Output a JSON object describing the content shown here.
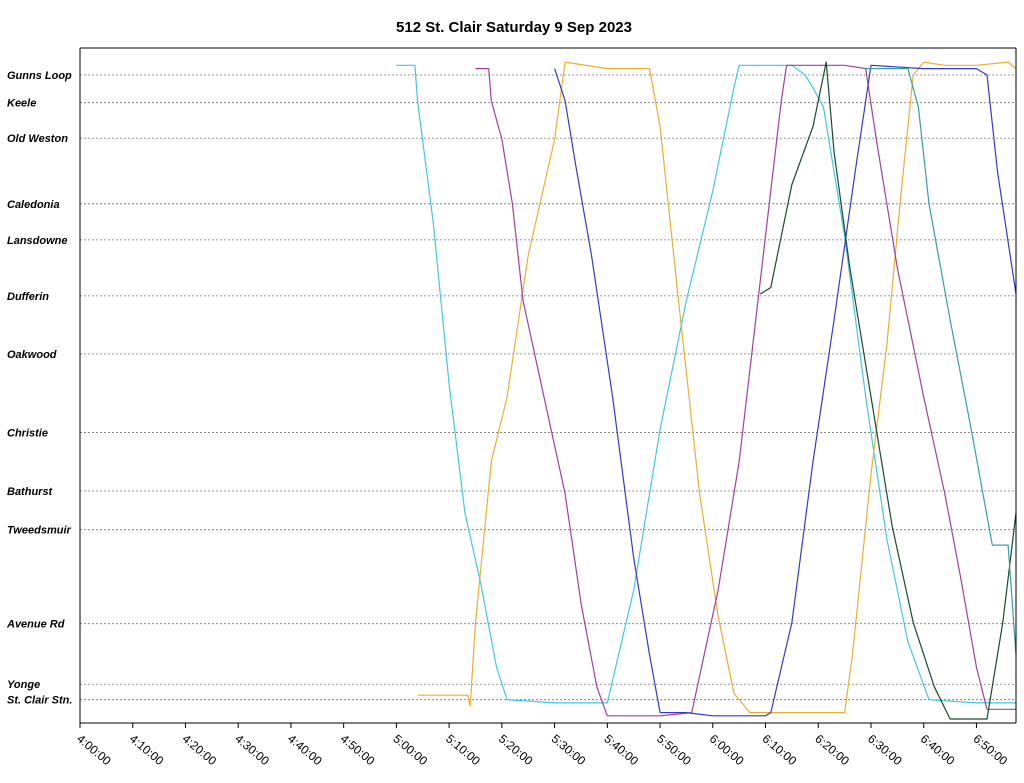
{
  "chart_data": {
    "type": "line",
    "title": "512 St. Clair Saturday 9 Sep 2023",
    "xlabel": "",
    "ylabel": "",
    "x_range": [
      "4:00:00",
      "6:57:30"
    ],
    "x_ticks": [
      "4:00:00",
      "4:10:00",
      "4:20:00",
      "4:30:00",
      "4:40:00",
      "4:50:00",
      "5:00:00",
      "5:10:00",
      "5:20:00",
      "5:30:00",
      "5:40:00",
      "5:50:00",
      "6:00:00",
      "6:10:00",
      "6:20:00",
      "6:30:00",
      "6:40:00",
      "6:50:00"
    ],
    "stops": [
      {
        "name": "Gunns Loop",
        "pos": 0.0
      },
      {
        "name": "Keele",
        "pos": 0.043
      },
      {
        "name": "Old Weston",
        "pos": 0.098
      },
      {
        "name": "Caledonia",
        "pos": 0.2
      },
      {
        "name": "Lansdowne",
        "pos": 0.256
      },
      {
        "name": "Dufferin",
        "pos": 0.343
      },
      {
        "name": "Oakwood",
        "pos": 0.433
      },
      {
        "name": "Christie",
        "pos": 0.555
      },
      {
        "name": "Bathurst",
        "pos": 0.646
      },
      {
        "name": "Tweedsmuir",
        "pos": 0.706
      },
      {
        "name": "Avenue Rd",
        "pos": 0.852
      },
      {
        "name": "Yonge",
        "pos": 0.946
      },
      {
        "name": "St. Clair Stn.",
        "pos": 0.97
      }
    ],
    "grid": "horizontal",
    "series": [
      {
        "color": "#40c8e0",
        "points": [
          [
            "5:00:00",
            -0.015
          ],
          [
            "5:03:30",
            -0.015
          ],
          [
            "5:04:00",
            0.04
          ],
          [
            "5:07:00",
            0.23
          ],
          [
            "5:10:00",
            0.48
          ],
          [
            "5:13:00",
            0.68
          ],
          [
            "5:16:00",
            0.79
          ],
          [
            "5:19:00",
            0.92
          ],
          [
            "5:21:00",
            0.97
          ],
          [
            "5:30:00",
            0.975
          ],
          [
            "5:40:00",
            0.975
          ],
          [
            "5:45:00",
            0.8
          ],
          [
            "5:50:00",
            0.55
          ],
          [
            "5:55:00",
            0.35
          ],
          [
            "6:00:00",
            0.18
          ],
          [
            "6:04:00",
            0.02
          ],
          [
            "6:05:00",
            -0.015
          ],
          [
            "6:15:00",
            -0.015
          ],
          [
            "6:17:30",
            0.0
          ],
          [
            "6:19:00",
            0.02
          ],
          [
            "6:21:00",
            0.05
          ],
          [
            "6:25:00",
            0.25
          ],
          [
            "6:29:00",
            0.5
          ],
          [
            "6:33:00",
            0.72
          ],
          [
            "6:37:00",
            0.88
          ],
          [
            "6:41:00",
            0.97
          ],
          [
            "6:50:00",
            0.975
          ],
          [
            "6:57:30",
            0.975
          ]
        ]
      },
      {
        "color": "#e8b030",
        "points": [
          [
            "5:04:00",
            0.963
          ],
          [
            "5:13:30",
            0.963
          ],
          [
            "5:14:00",
            0.98
          ],
          [
            "5:15:00",
            0.85
          ],
          [
            "5:18:00",
            0.6
          ],
          [
            "5:21:00",
            0.5
          ],
          [
            "5:25:00",
            0.28
          ],
          [
            "5:30:00",
            0.1
          ],
          [
            "5:32:00",
            -0.02
          ],
          [
            "5:40:00",
            -0.01
          ],
          [
            "5:48:00",
            -0.01
          ],
          [
            "5:50:00",
            0.08
          ],
          [
            "5:53:30",
            0.35
          ],
          [
            "5:57:30",
            0.65
          ],
          [
            "6:01:00",
            0.84
          ],
          [
            "6:04:00",
            0.96
          ],
          [
            "6:07:00",
            0.99
          ],
          [
            "6:20:00",
            0.99
          ],
          [
            "6:25:00",
            0.99
          ],
          [
            "6:26:30",
            0.9
          ],
          [
            "6:30:00",
            0.62
          ],
          [
            "6:33:00",
            0.42
          ],
          [
            "6:35:30",
            0.2
          ],
          [
            "6:38:00",
            0.0
          ],
          [
            "6:40:00",
            -0.02
          ],
          [
            "6:44:00",
            -0.015
          ],
          [
            "6:50:00",
            -0.015
          ],
          [
            "6:56:00",
            -0.02
          ],
          [
            "6:57:30",
            -0.01
          ]
        ]
      },
      {
        "color": "#a040a0",
        "points": [
          [
            "5:15:00",
            -0.01
          ],
          [
            "5:17:30",
            -0.01
          ],
          [
            "5:18:00",
            0.04
          ],
          [
            "5:20:00",
            0.1
          ],
          [
            "5:22:00",
            0.2
          ],
          [
            "5:24:00",
            0.35
          ],
          [
            "5:28:00",
            0.5
          ],
          [
            "5:32:00",
            0.65
          ],
          [
            "5:35:00",
            0.82
          ],
          [
            "5:38:00",
            0.95
          ],
          [
            "5:40:00",
            0.995
          ],
          [
            "5:50:00",
            0.995
          ],
          [
            "5:56:00",
            0.99
          ],
          [
            "6:01:00",
            0.8
          ],
          [
            "6:05:00",
            0.6
          ],
          [
            "6:10:00",
            0.25
          ],
          [
            "6:13:00",
            0.04
          ],
          [
            "6:14:00",
            -0.015
          ],
          [
            "6:20:00",
            -0.015
          ],
          [
            "6:25:00",
            -0.015
          ],
          [
            "6:29:00",
            -0.01
          ],
          [
            "6:31:00",
            0.1
          ],
          [
            "6:35:00",
            0.3
          ],
          [
            "6:40:00",
            0.5
          ],
          [
            "6:44:00",
            0.65
          ],
          [
            "6:47:00",
            0.78
          ],
          [
            "6:50:00",
            0.92
          ],
          [
            "6:52:00",
            0.985
          ],
          [
            "6:57:30",
            0.985
          ]
        ]
      },
      {
        "color": "#3838c8",
        "points": [
          [
            "5:30:00",
            -0.01
          ],
          [
            "5:32:00",
            0.04
          ],
          [
            "5:34:00",
            0.14
          ],
          [
            "5:37:00",
            0.28
          ],
          [
            "5:41:00",
            0.5
          ],
          [
            "5:45:00",
            0.75
          ],
          [
            "5:48:00",
            0.9
          ],
          [
            "5:50:00",
            0.99
          ],
          [
            "5:55:00",
            0.99
          ],
          [
            "6:00:00",
            0.995
          ],
          [
            "6:10:00",
            0.995
          ],
          [
            "6:11:00",
            0.99
          ],
          [
            "6:15:00",
            0.85
          ],
          [
            "6:19:00",
            0.6
          ],
          [
            "6:23:00",
            0.38
          ],
          [
            "6:27:00",
            0.15
          ],
          [
            "6:30:00",
            -0.015
          ],
          [
            "6:40:00",
            -0.01
          ],
          [
            "6:50:00",
            -0.01
          ],
          [
            "6:52:00",
            0.0
          ],
          [
            "6:54:00",
            0.15
          ],
          [
            "6:57:30",
            0.34
          ]
        ]
      },
      {
        "color": "#1a4a2a",
        "points": [
          [
            "6:09:00",
            0.34
          ],
          [
            "6:11:00",
            0.33
          ],
          [
            "6:13:00",
            0.25
          ],
          [
            "6:15:00",
            0.17
          ],
          [
            "6:19:00",
            0.08
          ],
          [
            "6:21:30",
            -0.02
          ],
          [
            "6:23:00",
            0.12
          ],
          [
            "6:26:00",
            0.3
          ],
          [
            "6:30:00",
            0.5
          ],
          [
            "6:34:00",
            0.7
          ],
          [
            "6:38:00",
            0.85
          ],
          [
            "6:42:00",
            0.95
          ],
          [
            "6:45:00",
            1.0
          ],
          [
            "6:52:00",
            1.0
          ],
          [
            "6:55:00",
            0.85
          ],
          [
            "6:57:30",
            0.68
          ]
        ]
      },
      {
        "color": "#38a0a0",
        "points": [
          [
            "6:29:00",
            -0.01
          ],
          [
            "6:37:00",
            -0.01
          ],
          [
            "6:39:00",
            0.05
          ],
          [
            "6:41:00",
            0.2
          ],
          [
            "6:45:00",
            0.38
          ],
          [
            "6:49:00",
            0.55
          ],
          [
            "6:53:00",
            0.73
          ],
          [
            "6:56:00",
            0.73
          ],
          [
            "6:57:30",
            0.9
          ]
        ]
      }
    ]
  }
}
